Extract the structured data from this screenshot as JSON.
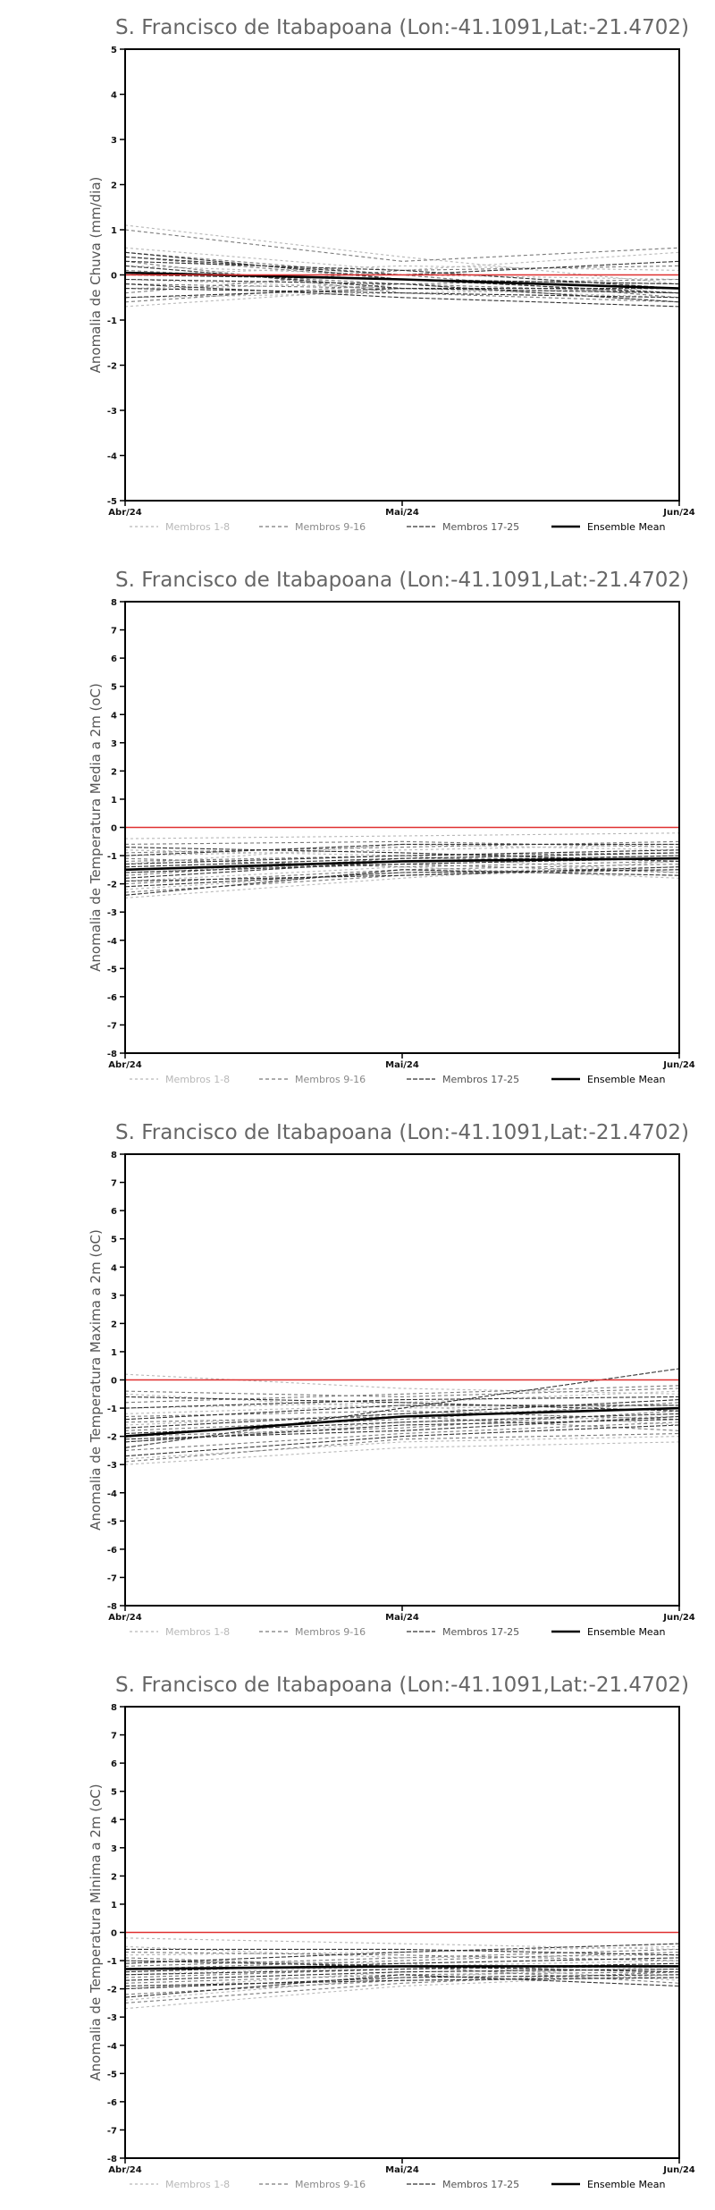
{
  "chart_data": [
    {
      "type": "line",
      "title": "S. Francisco de Itabapoana (Lon:-41.1091,Lat:-21.4702)",
      "ylabel": "Anomalia de Chuva (mm/dia)",
      "xlabel": "",
      "categories": [
        "Abr/24",
        "Mai/24",
        "Jun/24"
      ],
      "ylim": [
        -5,
        5
      ],
      "yticks": [
        -5,
        -4,
        -3,
        -2,
        -1,
        0,
        1,
        2,
        3,
        4,
        5
      ],
      "grid": false,
      "legend_position": "bottom",
      "legend": [
        "Membros 1-8",
        "Membros 9-16",
        "Membros 17-25",
        "Ensemble Mean"
      ],
      "reference_line": {
        "y": 0,
        "color": "#e03030"
      },
      "series_colors": {
        "m1_8": "#b8b8b8",
        "m9_16": "#7a7a7a",
        "m17_25": "#333333",
        "mean": "#000000"
      },
      "series": [
        {
          "group": "m1_8",
          "values": [
            1.1,
            0.4,
            -0.2
          ]
        },
        {
          "group": "m1_8",
          "values": [
            0.6,
            0.1,
            0.5
          ]
        },
        {
          "group": "m1_8",
          "values": [
            -0.1,
            -0.3,
            -0.4
          ]
        },
        {
          "group": "m1_8",
          "values": [
            -0.3,
            -0.2,
            -0.6
          ]
        },
        {
          "group": "m1_8",
          "values": [
            0.2,
            0.0,
            -0.1
          ]
        },
        {
          "group": "m1_8",
          "values": [
            -0.5,
            -0.4,
            -0.3
          ]
        },
        {
          "group": "m1_8",
          "values": [
            0.0,
            0.2,
            0.1
          ]
        },
        {
          "group": "m1_8",
          "values": [
            -0.7,
            -0.3,
            -0.5
          ]
        },
        {
          "group": "m9_16",
          "values": [
            1.0,
            0.3,
            0.6
          ]
        },
        {
          "group": "m9_16",
          "values": [
            0.4,
            -0.1,
            -0.2
          ]
        },
        {
          "group": "m9_16",
          "values": [
            0.1,
            -0.2,
            -0.4
          ]
        },
        {
          "group": "m9_16",
          "values": [
            -0.2,
            -0.3,
            -0.3
          ]
        },
        {
          "group": "m9_16",
          "values": [
            -0.4,
            0.1,
            0.2
          ]
        },
        {
          "group": "m9_16",
          "values": [
            0.3,
            -0.4,
            -0.6
          ]
        },
        {
          "group": "m9_16",
          "values": [
            -0.6,
            -0.2,
            -0.1
          ]
        },
        {
          "group": "m9_16",
          "values": [
            0.5,
            0.0,
            -0.5
          ]
        },
        {
          "group": "m17_25",
          "values": [
            0.5,
            -0.1,
            -0.4
          ]
        },
        {
          "group": "m17_25",
          "values": [
            0.2,
            -0.3,
            -0.3
          ]
        },
        {
          "group": "m17_25",
          "values": [
            -0.1,
            -0.2,
            -0.6
          ]
        },
        {
          "group": "m17_25",
          "values": [
            0.4,
            0.0,
            0.3
          ]
        },
        {
          "group": "m17_25",
          "values": [
            -0.3,
            -0.4,
            -0.5
          ]
        },
        {
          "group": "m17_25",
          "values": [
            0.0,
            -0.1,
            -0.2
          ]
        },
        {
          "group": "m17_25",
          "values": [
            -0.2,
            -0.5,
            -0.7
          ]
        },
        {
          "group": "m17_25",
          "values": [
            0.3,
            0.1,
            -0.3
          ]
        },
        {
          "group": "m17_25",
          "values": [
            -0.5,
            -0.3,
            -0.4
          ]
        },
        {
          "group": "mean",
          "name": "Ensemble Mean",
          "values": [
            0.05,
            -0.1,
            -0.3
          ]
        }
      ]
    },
    {
      "type": "line",
      "title": "S. Francisco de Itabapoana (Lon:-41.1091,Lat:-21.4702)",
      "ylabel": "Anomalia de Temperatura Media a 2m (oC)",
      "xlabel": "",
      "categories": [
        "Abr/24",
        "Mai/24",
        "Jun/24"
      ],
      "ylim": [
        -8,
        8
      ],
      "yticks": [
        -8,
        -7,
        -6,
        -5,
        -4,
        -3,
        -2,
        -1,
        0,
        1,
        2,
        3,
        4,
        5,
        6,
        7,
        8
      ],
      "grid": false,
      "legend_position": "bottom",
      "legend": [
        "Membros 1-8",
        "Membros 9-16",
        "Membros 17-25",
        "Ensemble Mean"
      ],
      "reference_line": {
        "y": 0,
        "color": "#e03030"
      },
      "series_colors": {
        "m1_8": "#b8b8b8",
        "m9_16": "#7a7a7a",
        "m17_25": "#333333",
        "mean": "#000000"
      },
      "series": [
        {
          "group": "m1_8",
          "values": [
            -0.4,
            -0.3,
            -0.2
          ]
        },
        {
          "group": "m1_8",
          "values": [
            -1.0,
            -0.8,
            -0.6
          ]
        },
        {
          "group": "m1_8",
          "values": [
            -2.2,
            -1.6,
            -1.4
          ]
        },
        {
          "group": "m1_8",
          "values": [
            -1.6,
            -1.2,
            -1.0
          ]
        },
        {
          "group": "m1_8",
          "values": [
            -0.8,
            -1.0,
            -1.6
          ]
        },
        {
          "group": "m1_8",
          "values": [
            -2.5,
            -1.8,
            -1.2
          ]
        },
        {
          "group": "m1_8",
          "values": [
            -1.3,
            -0.6,
            -0.8
          ]
        },
        {
          "group": "m1_8",
          "values": [
            -1.9,
            -1.4,
            -1.8
          ]
        },
        {
          "group": "m9_16",
          "values": [
            -0.6,
            -0.5,
            -0.7
          ]
        },
        {
          "group": "m9_16",
          "values": [
            -1.2,
            -1.0,
            -0.9
          ]
        },
        {
          "group": "m9_16",
          "values": [
            -2.0,
            -1.5,
            -1.3
          ]
        },
        {
          "group": "m9_16",
          "values": [
            -1.5,
            -1.3,
            -1.6
          ]
        },
        {
          "group": "m9_16",
          "values": [
            -2.3,
            -1.7,
            -1.5
          ]
        },
        {
          "group": "m9_16",
          "values": [
            -0.9,
            -0.7,
            -0.5
          ]
        },
        {
          "group": "m9_16",
          "values": [
            -1.7,
            -1.1,
            -1.1
          ]
        },
        {
          "group": "m9_16",
          "values": [
            -1.1,
            -1.4,
            -1.2
          ]
        },
        {
          "group": "m17_25",
          "values": [
            -1.8,
            -1.2,
            -1.0
          ]
        },
        {
          "group": "m17_25",
          "values": [
            -2.1,
            -1.6,
            -1.5
          ]
        },
        {
          "group": "m17_25",
          "values": [
            -1.4,
            -1.1,
            -0.9
          ]
        },
        {
          "group": "m17_25",
          "values": [
            -0.7,
            -0.9,
            -1.2
          ]
        },
        {
          "group": "m17_25",
          "values": [
            -2.4,
            -1.5,
            -1.7
          ]
        },
        {
          "group": "m17_25",
          "values": [
            -1.6,
            -1.3,
            -1.1
          ]
        },
        {
          "group": "m17_25",
          "values": [
            -1.0,
            -0.6,
            -0.6
          ]
        },
        {
          "group": "m17_25",
          "values": [
            -1.9,
            -1.7,
            -1.4
          ]
        },
        {
          "group": "m17_25",
          "values": [
            -1.3,
            -1.0,
            -0.8
          ]
        },
        {
          "group": "mean",
          "name": "Ensemble Mean",
          "values": [
            -1.5,
            -1.2,
            -1.1
          ]
        }
      ]
    },
    {
      "type": "line",
      "title": "S. Francisco de Itabapoana (Lon:-41.1091,Lat:-21.4702)",
      "ylabel": "Anomalia de Temperatura Maxima a 2m (oC)",
      "xlabel": "",
      "categories": [
        "Abr/24",
        "Mai/24",
        "Jun/24"
      ],
      "ylim": [
        -8,
        8
      ],
      "yticks": [
        -8,
        -7,
        -6,
        -5,
        -4,
        -3,
        -2,
        -1,
        0,
        1,
        2,
        3,
        4,
        5,
        6,
        7,
        8
      ],
      "grid": false,
      "legend_position": "bottom",
      "legend": [
        "Membros 1-8",
        "Membros 9-16",
        "Membros 17-25",
        "Ensemble Mean"
      ],
      "reference_line": {
        "y": 0,
        "color": "#e03030"
      },
      "series_colors": {
        "m1_8": "#b8b8b8",
        "m9_16": "#7a7a7a",
        "m17_25": "#333333",
        "mean": "#000000"
      },
      "series": [
        {
          "group": "m1_8",
          "values": [
            0.2,
            -0.3,
            -0.5
          ]
        },
        {
          "group": "m1_8",
          "values": [
            -1.0,
            -0.8,
            -0.4
          ]
        },
        {
          "group": "m1_8",
          "values": [
            -2.8,
            -2.2,
            -2.0
          ]
        },
        {
          "group": "m1_8",
          "values": [
            -1.6,
            -1.2,
            -1.0
          ]
        },
        {
          "group": "m1_8",
          "values": [
            -2.2,
            -1.5,
            -1.3
          ]
        },
        {
          "group": "m1_8",
          "values": [
            -0.5,
            -1.0,
            -0.9
          ]
        },
        {
          "group": "m1_8",
          "values": [
            -3.0,
            -2.4,
            -2.2
          ]
        },
        {
          "group": "m1_8",
          "values": [
            -1.2,
            -0.9,
            -1.6
          ]
        },
        {
          "group": "m9_16",
          "values": [
            -0.4,
            -0.6,
            -0.3
          ]
        },
        {
          "group": "m9_16",
          "values": [
            -1.8,
            -1.4,
            -0.8
          ]
        },
        {
          "group": "m9_16",
          "values": [
            -2.5,
            -1.9,
            -1.5
          ]
        },
        {
          "group": "m9_16",
          "values": [
            -1.3,
            -1.1,
            -1.4
          ]
        },
        {
          "group": "m9_16",
          "values": [
            -2.9,
            -2.1,
            -1.9
          ]
        },
        {
          "group": "m9_16",
          "values": [
            -0.8,
            -0.5,
            -0.2
          ]
        },
        {
          "group": "m9_16",
          "values": [
            -2.0,
            -1.7,
            -1.1
          ]
        },
        {
          "group": "m9_16",
          "values": [
            -1.5,
            -1.3,
            -1.8
          ]
        },
        {
          "group": "m17_25",
          "values": [
            -2.4,
            -1.0,
            0.4
          ]
        },
        {
          "group": "m17_25",
          "values": [
            -1.9,
            -1.5,
            -1.2
          ]
        },
        {
          "group": "m17_25",
          "values": [
            -1.0,
            -0.7,
            -0.6
          ]
        },
        {
          "group": "m17_25",
          "values": [
            -2.7,
            -2.0,
            -1.6
          ]
        },
        {
          "group": "m17_25",
          "values": [
            -1.4,
            -0.9,
            -0.9
          ]
        },
        {
          "group": "m17_25",
          "values": [
            -2.2,
            -1.6,
            -1.4
          ]
        },
        {
          "group": "m17_25",
          "values": [
            -0.6,
            -0.8,
            -1.1
          ]
        },
        {
          "group": "m17_25",
          "values": [
            -1.7,
            -1.2,
            -0.7
          ]
        },
        {
          "group": "m17_25",
          "values": [
            -2.1,
            -1.8,
            -1.3
          ]
        },
        {
          "group": "mean",
          "name": "Ensemble Mean",
          "values": [
            -2.0,
            -1.3,
            -1.0
          ]
        }
      ]
    },
    {
      "type": "line",
      "title": "S. Francisco de Itabapoana (Lon:-41.1091,Lat:-21.4702)",
      "ylabel": "Anomalia de Temperatura Minima a 2m (oC)",
      "xlabel": "",
      "categories": [
        "Abr/24",
        "Mai/24",
        "Jun/24"
      ],
      "ylim": [
        -8,
        8
      ],
      "yticks": [
        -8,
        -7,
        -6,
        -5,
        -4,
        -3,
        -2,
        -1,
        0,
        1,
        2,
        3,
        4,
        5,
        6,
        7,
        8
      ],
      "grid": false,
      "legend_position": "bottom",
      "legend": [
        "Membros 1-8",
        "Membros 9-16",
        "Membros 17-25",
        "Ensemble Mean"
      ],
      "reference_line": {
        "y": 0,
        "color": "#e03030"
      },
      "series_colors": {
        "m1_8": "#b8b8b8",
        "m9_16": "#7a7a7a",
        "m17_25": "#333333",
        "mean": "#000000"
      },
      "series": [
        {
          "group": "m1_8",
          "values": [
            -0.2,
            -0.4,
            -0.6
          ]
        },
        {
          "group": "m1_8",
          "values": [
            -0.8,
            -0.7,
            -0.5
          ]
        },
        {
          "group": "m1_8",
          "values": [
            -2.7,
            -1.9,
            -1.5
          ]
        },
        {
          "group": "m1_8",
          "values": [
            -1.5,
            -1.2,
            -1.0
          ]
        },
        {
          "group": "m1_8",
          "values": [
            -2.0,
            -1.4,
            -1.3
          ]
        },
        {
          "group": "m1_8",
          "values": [
            -1.0,
            -1.1,
            -1.7
          ]
        },
        {
          "group": "m1_8",
          "values": [
            -2.4,
            -1.6,
            -1.2
          ]
        },
        {
          "group": "m1_8",
          "values": [
            -0.5,
            -0.9,
            -0.8
          ]
        },
        {
          "group": "m9_16",
          "values": [
            -1.2,
            -0.9,
            -0.6
          ]
        },
        {
          "group": "m9_16",
          "values": [
            -1.8,
            -1.5,
            -1.4
          ]
        },
        {
          "group": "m9_16",
          "values": [
            -2.2,
            -1.7,
            -1.6
          ]
        },
        {
          "group": "m9_16",
          "values": [
            -0.7,
            -0.8,
            -1.0
          ]
        },
        {
          "group": "m9_16",
          "values": [
            -1.6,
            -1.3,
            -1.2
          ]
        },
        {
          "group": "m9_16",
          "values": [
            -2.5,
            -1.8,
            -1.4
          ]
        },
        {
          "group": "m9_16",
          "values": [
            -1.3,
            -1.0,
            -0.7
          ]
        },
        {
          "group": "m9_16",
          "values": [
            -0.9,
            -1.2,
            -1.8
          ]
        },
        {
          "group": "m17_25",
          "values": [
            -1.1,
            -0.7,
            -0.4
          ]
        },
        {
          "group": "m17_25",
          "values": [
            -1.7,
            -1.4,
            -1.3
          ]
        },
        {
          "group": "m17_25",
          "values": [
            -2.0,
            -1.6,
            -1.5
          ]
        },
        {
          "group": "m17_25",
          "values": [
            -1.4,
            -1.1,
            -0.9
          ]
        },
        {
          "group": "m17_25",
          "values": [
            -0.6,
            -0.6,
            -0.8
          ]
        },
        {
          "group": "m17_25",
          "values": [
            -2.3,
            -1.5,
            -1.9
          ]
        },
        {
          "group": "m17_25",
          "values": [
            -1.5,
            -1.3,
            -1.1
          ]
        },
        {
          "group": "m17_25",
          "values": [
            -1.9,
            -1.7,
            -1.6
          ]
        },
        {
          "group": "m17_25",
          "values": [
            -1.0,
            -1.2,
            -1.4
          ]
        },
        {
          "group": "mean",
          "name": "Ensemble Mean",
          "values": [
            -1.3,
            -1.2,
            -1.2
          ]
        }
      ]
    }
  ]
}
